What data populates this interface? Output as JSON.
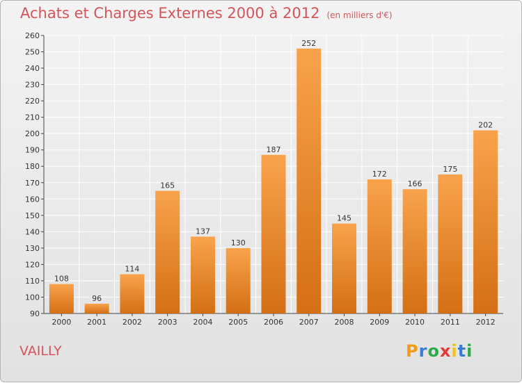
{
  "header": {
    "title": "Achats et Charges Externes 2000 à 2012",
    "unit": "(en milliers d'€)"
  },
  "footer": {
    "commune": "VAILLY",
    "logo": {
      "letters": [
        "P",
        "r",
        "o",
        "x",
        "i",
        "t",
        "i"
      ],
      "colors": [
        "#f39c12",
        "#3a7bd5",
        "#2eaa4a",
        "#e53935",
        "#f1c40f",
        "#3a7bd5",
        "#2eaa4a"
      ]
    }
  },
  "colors": {
    "bar_light": "#f8a34c",
    "bar_dark": "#d46f14",
    "grid": "#ffffff",
    "text": "#333333"
  },
  "chart_data": {
    "type": "bar",
    "categories": [
      "2000",
      "2001",
      "2002",
      "2003",
      "2004",
      "2005",
      "2006",
      "2007",
      "2008",
      "2009",
      "2010",
      "2011",
      "2012"
    ],
    "values": [
      108,
      96,
      114,
      165,
      137,
      130,
      187,
      252,
      145,
      172,
      166,
      175,
      202
    ],
    "yticks": [
      90,
      100,
      110,
      120,
      130,
      140,
      150,
      160,
      170,
      180,
      190,
      200,
      210,
      220,
      230,
      240,
      250,
      260
    ],
    "ylim": [
      90,
      260
    ],
    "grid": true,
    "data_labels": true
  }
}
